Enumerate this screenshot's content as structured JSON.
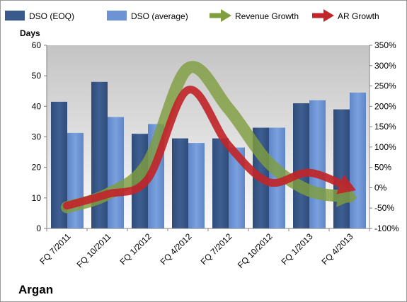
{
  "chart_data": {
    "type": "bar",
    "categories": [
      "FQ 7/2011",
      "FQ 10/2011",
      "FQ 1/2012",
      "FQ 4/2012",
      "FQ 7/2012",
      "FQ 10/2012",
      "FQ 1/2013",
      "FQ 4/2013"
    ],
    "series": [
      {
        "name": "DSO (EOQ)",
        "type": "bar",
        "axis": "left",
        "color": "#3b5a8c",
        "values": [
          41.5,
          48,
          31,
          29.5,
          29.5,
          33,
          41,
          39
        ]
      },
      {
        "name": "DSO (average)",
        "type": "bar",
        "axis": "left",
        "color": "#6e93d4",
        "values": [
          31.3,
          36.5,
          34.2,
          28,
          26.5,
          33,
          42,
          44.5
        ]
      },
      {
        "name": "Revenue Growth",
        "type": "line-arrow",
        "axis": "right",
        "color": "#7f9e3f",
        "values": [
          -0.48,
          -0.16,
          0.6,
          2.93,
          1.95,
          0.62,
          -0.07,
          -0.22
        ]
      },
      {
        "name": "AR Growth",
        "type": "line-arrow",
        "axis": "right",
        "color": "#c0262a",
        "values": [
          -0.44,
          -0.16,
          0.21,
          2.4,
          1.05,
          0.14,
          0.37,
          0.0
        ]
      }
    ],
    "left_axis": {
      "label": "Days",
      "min": 0,
      "max": 60,
      "step": 10
    },
    "right_axis": {
      "min": -1.0,
      "max": 3.5,
      "step": 0.5,
      "format": "percent"
    },
    "legend_position": "top",
    "grid": false,
    "title": "Argan"
  }
}
